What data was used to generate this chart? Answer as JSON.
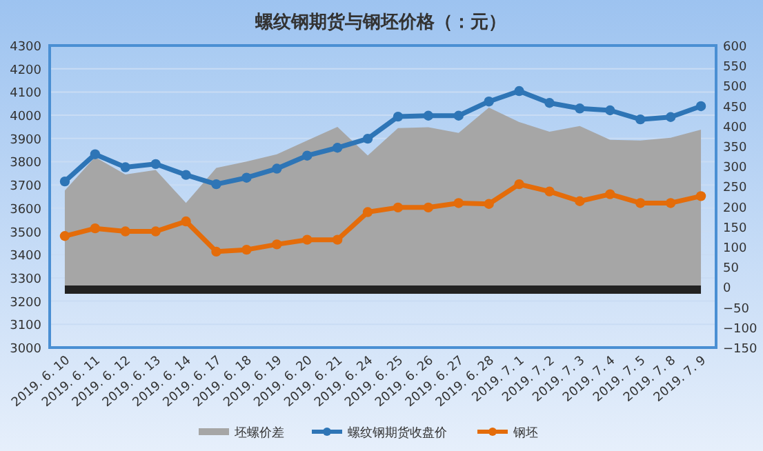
{
  "chart_data": {
    "type": "line",
    "title": "螺纹钢期货与钢坯价格（：元）",
    "categories": [
      "2019. 6. 10",
      "2019. 6. 11",
      "2019. 6. 12",
      "2019. 6. 13",
      "2019. 6. 14",
      "2019. 6. 17",
      "2019. 6. 18",
      "2019. 6. 19",
      "2019. 6. 20",
      "2019. 6. 21",
      "2019. 6. 24",
      "2019. 6. 25",
      "2019. 6. 26",
      "2019. 6. 27",
      "2019. 6. 28",
      "2019. 7. 1",
      "2019. 7. 2",
      "2019. 7. 3",
      "2019. 7. 4",
      "2019. 7. 5",
      "2019. 7. 8",
      "2019. 7. 9"
    ],
    "series": [
      {
        "name": "坯螺价差",
        "type": "area",
        "axis": "y2",
        "color": "#a6a6a6",
        "values": [
          240,
          323,
          280,
          291,
          209,
          296,
          312,
          330,
          364,
          398,
          327,
          395,
          397,
          383,
          446,
          410,
          386,
          400,
          366,
          364,
          371,
          391
        ]
      },
      {
        "name": "螺纹钢期货收盘价",
        "marker": "circle",
        "color": "#2e75b6",
        "values": [
          3715,
          3832,
          3776,
          3790,
          3743,
          3703,
          3731,
          3770,
          3826,
          3860,
          3899,
          3994,
          3998,
          3998,
          4059,
          4104,
          4053,
          4029,
          4021,
          3982,
          3992,
          4039
        ]
      },
      {
        "name": "钢坯",
        "marker": "circle",
        "color": "#e46c0a",
        "values": [
          3480,
          3513,
          3500,
          3500,
          3543,
          3413,
          3421,
          3444,
          3464,
          3464,
          3583,
          3603,
          3603,
          3622,
          3618,
          3703,
          3672,
          3630,
          3660,
          3622,
          3622,
          3652
        ]
      }
    ],
    "ylim": [
      3000,
      4300
    ],
    "yticks": [
      3000,
      3100,
      3200,
      3300,
      3400,
      3500,
      3600,
      3700,
      3800,
      3900,
      4000,
      4100,
      4200,
      4300
    ],
    "y2lim": [
      -150,
      600
    ],
    "y2ticks": [
      -150,
      -100,
      -50,
      0,
      50,
      100,
      150,
      200,
      250,
      300,
      350,
      400,
      450,
      500,
      550,
      600
    ],
    "ref_lines": [
      {
        "axis": "y2",
        "value": -6,
        "color": "#222222"
      }
    ],
    "grid": "y",
    "legend": "bottom",
    "line_style": "solid"
  }
}
